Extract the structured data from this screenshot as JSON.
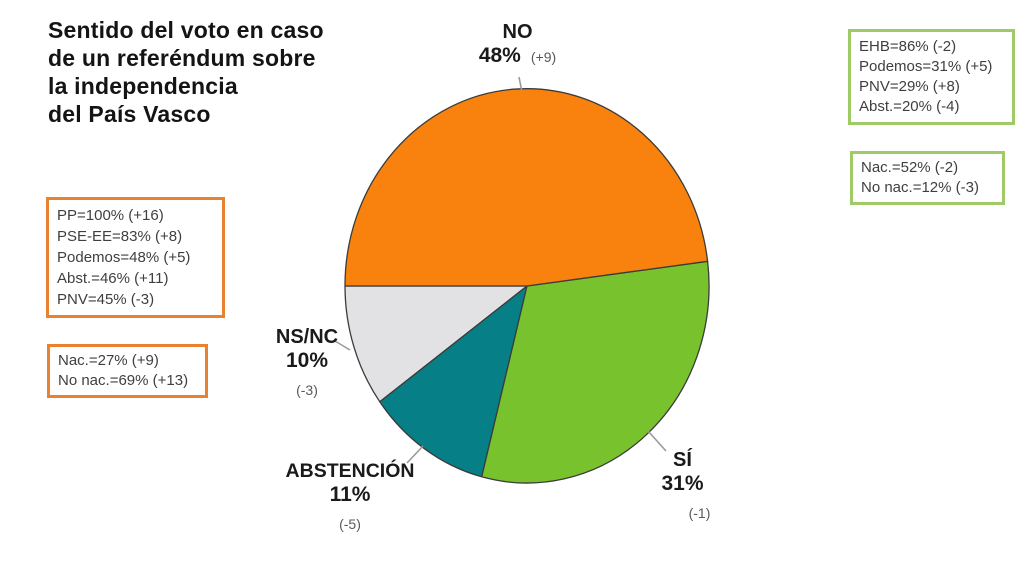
{
  "title": {
    "lines": [
      "Sentido del voto en caso",
      "de un referéndum sobre",
      "la independencia",
      "del País Vasco"
    ]
  },
  "chart_data": {
    "type": "pie",
    "title": "Sentido del voto en caso de un referéndum sobre la independencia del País Vasco",
    "start_angle_deg": 180,
    "direction": "clockwise",
    "legend_position": "none",
    "outline_color": "#3b3b3b",
    "leader_line_color": "#9a9a9a",
    "segments": [
      {
        "id": "no",
        "label": "NO",
        "value_pct": 48,
        "pct_label": "48%",
        "change": "(+9)",
        "color": "#F8820D"
      },
      {
        "id": "si",
        "label": "SÍ",
        "value_pct": 31,
        "pct_label": "31%",
        "change": "(-1)",
        "color": "#78C32D"
      },
      {
        "id": "abstencion",
        "label": "ABSTENCIÓN",
        "value_pct": 11,
        "pct_label": "11%",
        "change": "(-5)",
        "color": "#077F86"
      },
      {
        "id": "nsnc",
        "label": "NS/NC",
        "value_pct": 10,
        "pct_label": "10%",
        "change": "(-3)",
        "color": "#E2E2E5"
      }
    ]
  },
  "annotation_boxes": {
    "no_party": {
      "border_color": "#E9822E",
      "lines": [
        "PP=100% (+16)",
        "PSE-EE=83% (+8)",
        "Podemos=48% (+5)",
        "Abst.=46% (+11)",
        "PNV=45% (-3)"
      ]
    },
    "no_identity": {
      "border_color": "#E9822E",
      "lines": [
        "Nac.=27% (+9)",
        "No nac.=69% (+13)"
      ]
    },
    "si_party": {
      "border_color": "#9ECB66",
      "lines": [
        "EHB=86% (-2)",
        "Podemos=31% (+5)",
        "PNV=29% (+8)",
        "Abst.=20% (-4)"
      ]
    },
    "si_identity": {
      "border_color": "#9ECB66",
      "lines": [
        "Nac.=52% (-2)",
        "No nac.=12% (-3)"
      ]
    }
  }
}
